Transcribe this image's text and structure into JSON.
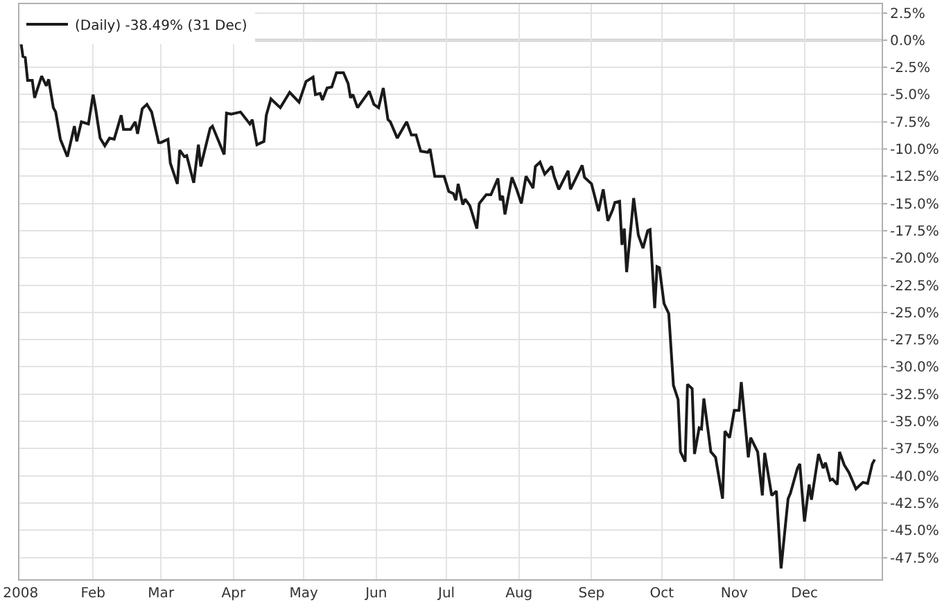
{
  "chart_data": {
    "type": "line",
    "legend": "top left",
    "grid": true,
    "marker": "none",
    "line_style": "solid",
    "xlim": [
      "2007-12-31T12:00",
      "2009-01-03"
    ],
    "ylim": [
      -49.5,
      3.3
    ],
    "xticks": [
      {
        "value": "2008-01-01",
        "label": "2008"
      },
      {
        "value": "2008-02-01",
        "label": "Feb"
      },
      {
        "value": "2008-03-01",
        "label": "Mar"
      },
      {
        "value": "2008-04-01",
        "label": "Apr"
      },
      {
        "value": "2008-05-01",
        "label": "May"
      },
      {
        "value": "2008-06-01",
        "label": "Jun"
      },
      {
        "value": "2008-07-01",
        "label": "Jul"
      },
      {
        "value": "2008-08-01",
        "label": "Aug"
      },
      {
        "value": "2008-09-01",
        "label": "Sep"
      },
      {
        "value": "2008-10-01",
        "label": "Oct"
      },
      {
        "value": "2008-11-01",
        "label": "Nov"
      },
      {
        "value": "2008-12-01",
        "label": "Dec"
      }
    ],
    "yticks": [
      {
        "value": 2.5,
        "label": "2.5%"
      },
      {
        "value": 0,
        "label": "0.0%"
      },
      {
        "value": -2.5,
        "label": "-2.5%"
      },
      {
        "value": -5,
        "label": "-5.0%"
      },
      {
        "value": -7.5,
        "label": "-7.5%"
      },
      {
        "value": -10,
        "label": "-10.0%"
      },
      {
        "value": -12.5,
        "label": "-12.5%"
      },
      {
        "value": -15,
        "label": "-15.0%"
      },
      {
        "value": -17.5,
        "label": "-17.5%"
      },
      {
        "value": -20,
        "label": "-20.0%"
      },
      {
        "value": -22.5,
        "label": "-22.5%"
      },
      {
        "value": -25,
        "label": "-25.0%"
      },
      {
        "value": -27.5,
        "label": "-27.5%"
      },
      {
        "value": -30,
        "label": "-30.0%"
      },
      {
        "value": -32.5,
        "label": "-32.5%"
      },
      {
        "value": -35,
        "label": "-35.0%"
      },
      {
        "value": -37.5,
        "label": "-37.5%"
      },
      {
        "value": -40,
        "label": "-40.0%"
      },
      {
        "value": -42.5,
        "label": "-42.5%"
      },
      {
        "value": -45,
        "label": "-45.0%"
      },
      {
        "value": -47.5,
        "label": "-47.5%"
      }
    ],
    "ref_lines": [
      {
        "axis": "y",
        "value": 0,
        "color": "#8a8a8a"
      }
    ],
    "series": [
      {
        "name": "(Daily) -38.49% (31 Dec)",
        "color": "#1a1a1a",
        "x": [
          "2008-01-01",
          "2008-01-02",
          "2008-01-03",
          "2008-01-04",
          "2008-01-06",
          "2008-01-07",
          "2008-01-10",
          "2008-01-12",
          "2008-01-13",
          "2008-01-15",
          "2008-01-16",
          "2008-01-18",
          "2008-01-21",
          "2008-01-24",
          "2008-01-25",
          "2008-01-27",
          "2008-01-30",
          "2008-02-01",
          "2008-02-02",
          "2008-02-04",
          "2008-02-06",
          "2008-02-08",
          "2008-02-10",
          "2008-02-13",
          "2008-02-14",
          "2008-02-17",
          "2008-02-19",
          "2008-02-20",
          "2008-02-22",
          "2008-02-24",
          "2008-02-26",
          "2008-02-29",
          "2008-03-01",
          "2008-03-04",
          "2008-03-05",
          "2008-03-08",
          "2008-03-09",
          "2008-03-11",
          "2008-03-12",
          "2008-03-15",
          "2008-03-17",
          "2008-03-18",
          "2008-03-22",
          "2008-03-23",
          "2008-03-28",
          "2008-03-29",
          "2008-03-31",
          "2008-04-04",
          "2008-04-08",
          "2008-04-09",
          "2008-04-11",
          "2008-04-14",
          "2008-04-15",
          "2008-04-17",
          "2008-04-21",
          "2008-04-25",
          "2008-04-29",
          "2008-05-02",
          "2008-05-05",
          "2008-05-06",
          "2008-05-08",
          "2008-05-09",
          "2008-05-11",
          "2008-05-13",
          "2008-05-15",
          "2008-05-18",
          "2008-05-20",
          "2008-05-21",
          "2008-05-22",
          "2008-05-24",
          "2008-05-29",
          "2008-05-31",
          "2008-06-02",
          "2008-06-04",
          "2008-06-06",
          "2008-06-07",
          "2008-06-10",
          "2008-06-14",
          "2008-06-16",
          "2008-06-18",
          "2008-06-20",
          "2008-06-23",
          "2008-06-24",
          "2008-06-26",
          "2008-06-30",
          "2008-07-02",
          "2008-07-04",
          "2008-07-05",
          "2008-07-06",
          "2008-07-08",
          "2008-07-09",
          "2008-07-11",
          "2008-07-14",
          "2008-07-15",
          "2008-07-18",
          "2008-07-20",
          "2008-07-23",
          "2008-07-24",
          "2008-07-25",
          "2008-07-26",
          "2008-07-29",
          "2008-07-31",
          "2008-08-02",
          "2008-08-04",
          "2008-08-06",
          "2008-08-07",
          "2008-08-08",
          "2008-08-10",
          "2008-08-12",
          "2008-08-15",
          "2008-08-16",
          "2008-08-18",
          "2008-08-22",
          "2008-08-23",
          "2008-08-28",
          "2008-08-29",
          "2008-09-01",
          "2008-09-04",
          "2008-09-06",
          "2008-09-08",
          "2008-09-10",
          "2008-09-11",
          "2008-09-13",
          "2008-09-14",
          "2008-09-15",
          "2008-09-16",
          "2008-09-19",
          "2008-09-21",
          "2008-09-23",
          "2008-09-25",
          "2008-09-26",
          "2008-09-28",
          "2008-09-29",
          "2008-09-30",
          "2008-10-02",
          "2008-10-04",
          "2008-10-06",
          "2008-10-08",
          "2008-10-09",
          "2008-10-11",
          "2008-10-12",
          "2008-10-14",
          "2008-10-15",
          "2008-10-17",
          "2008-10-18",
          "2008-10-19",
          "2008-10-22",
          "2008-10-24",
          "2008-10-27",
          "2008-10-28",
          "2008-10-30",
          "2008-11-01",
          "2008-11-03",
          "2008-11-04",
          "2008-11-07",
          "2008-11-08",
          "2008-11-11",
          "2008-11-13",
          "2008-11-14",
          "2008-11-17",
          "2008-11-19",
          "2008-11-21",
          "2008-11-24",
          "2008-11-25",
          "2008-11-28",
          "2008-11-29",
          "2008-12-01",
          "2008-12-03",
          "2008-12-04",
          "2008-12-07",
          "2008-12-09",
          "2008-12-10",
          "2008-12-12",
          "2008-12-13",
          "2008-12-15",
          "2008-12-16",
          "2008-12-18",
          "2008-12-20",
          "2008-12-23",
          "2008-12-26",
          "2008-12-28",
          "2008-12-30",
          "2008-12-31"
        ],
        "values": [
          0,
          -1.5,
          -1.6,
          -3.7,
          -3.7,
          -5.3,
          -3.3,
          -4.2,
          -3.6,
          -6.2,
          -6.6,
          -9.1,
          -10.7,
          -7.9,
          -9.3,
          -7.5,
          -7.7,
          -5.0,
          -6.2,
          -9.0,
          -9.7,
          -9.0,
          -9.1,
          -6.9,
          -8.2,
          -8.2,
          -7.5,
          -8.6,
          -6.3,
          -5.9,
          -6.6,
          -9.4,
          -9.4,
          -9.1,
          -11.3,
          -13.2,
          -10.1,
          -10.7,
          -10.6,
          -13.1,
          -9.6,
          -11.6,
          -8.1,
          -7.9,
          -10.5,
          -6.7,
          -6.8,
          -6.6,
          -7.7,
          -7.3,
          -9.6,
          -9.3,
          -6.9,
          -5.4,
          -6.2,
          -4.8,
          -5.7,
          -3.8,
          -3.4,
          -5.0,
          -4.9,
          -5.5,
          -4.4,
          -4.3,
          -3.0,
          -3.0,
          -4.0,
          -5.3,
          -5.0,
          -6.2,
          -4.7,
          -5.9,
          -6.2,
          -4.4,
          -7.3,
          -7.5,
          -9.0,
          -7.5,
          -8.7,
          -8.7,
          -10.2,
          -10.3,
          -10.0,
          -12.5,
          -12.5,
          -13.9,
          -14.1,
          -14.7,
          -13.2,
          -15.1,
          -14.6,
          -15.2,
          -17.3,
          -15.0,
          -14.2,
          -14.2,
          -12.7,
          -14.7,
          -14.3,
          -16.0,
          -12.6,
          -13.7,
          -15.0,
          -12.5,
          -13.2,
          -13.6,
          -11.6,
          -11.2,
          -12.3,
          -11.6,
          -12.5,
          -13.7,
          -12.0,
          -13.7,
          -11.5,
          -12.6,
          -13.2,
          -15.7,
          -13.7,
          -16.6,
          -15.6,
          -14.9,
          -14.8,
          -18.8,
          -17.3,
          -21.3,
          -14.5,
          -17.9,
          -19.1,
          -17.5,
          -17.4,
          -24.6,
          -20.8,
          -20.9,
          -24.2,
          -25.1,
          -31.7,
          -33.0,
          -37.8,
          -38.7,
          -31.6,
          -32.0,
          -38.0,
          -35.6,
          -35.7,
          -32.9,
          -37.8,
          -38.3,
          -42.1,
          -35.9,
          -36.5,
          -34.0,
          -34.0,
          -31.4,
          -38.3,
          -36.5,
          -37.8,
          -41.8,
          -37.9,
          -41.8,
          -41.4,
          -48.5,
          -42.1,
          -41.6,
          -39.3,
          -38.9,
          -44.2,
          -40.8,
          -42.2,
          -38.0,
          -39.3,
          -38.8,
          -40.4,
          -40.3,
          -40.8,
          -37.8,
          -39.0,
          -39.7,
          -41.2,
          -40.6,
          -40.7,
          -38.9,
          -38.5
        ]
      }
    ]
  }
}
